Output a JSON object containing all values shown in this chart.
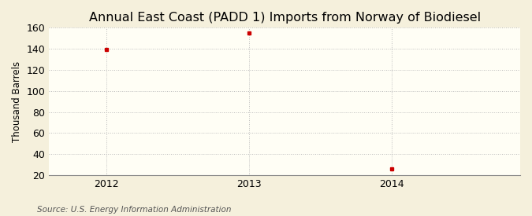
{
  "title": "Annual East Coast (PADD 1) Imports from Norway of Biodiesel",
  "ylabel": "Thousand Barrels",
  "source": "Source: U.S. Energy Information Administration",
  "years": [
    2012,
    2013,
    2014
  ],
  "values": [
    139,
    155,
    26
  ],
  "ylim": [
    20,
    160
  ],
  "yticks": [
    20,
    40,
    60,
    80,
    100,
    120,
    140,
    160
  ],
  "xlim": [
    2011.6,
    2014.9
  ],
  "xticks": [
    2012,
    2013,
    2014
  ],
  "marker_color": "#cc0000",
  "marker": "s",
  "marker_size": 3,
  "grid_color": "#bbbbbb",
  "background_color": "#fffef5",
  "figure_background": "#f5f0dc",
  "title_fontsize": 11.5,
  "axis_label_fontsize": 8.5,
  "tick_fontsize": 9,
  "source_fontsize": 7.5
}
